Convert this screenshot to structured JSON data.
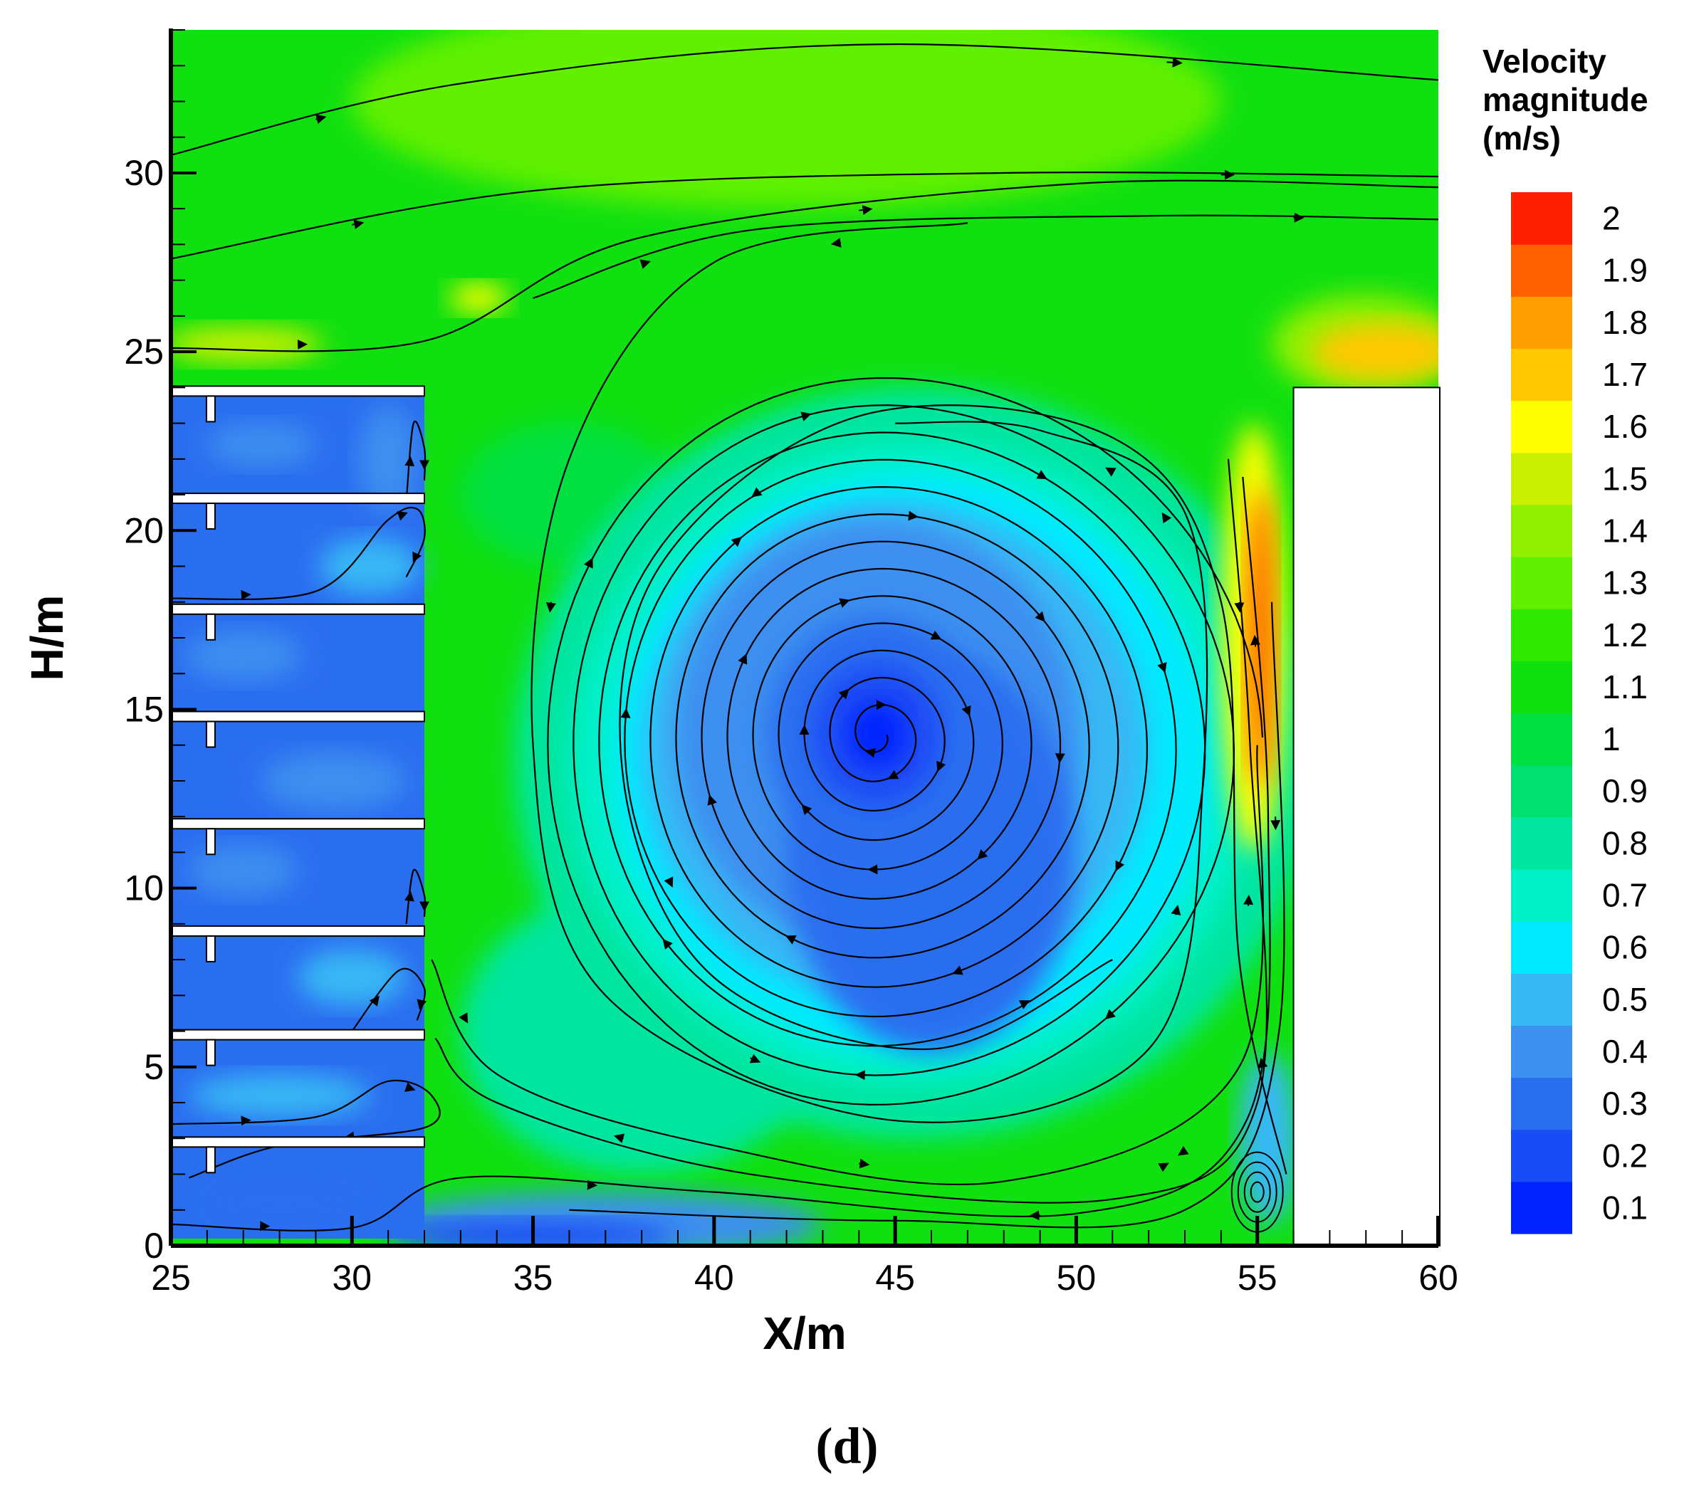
{
  "chart_data": {
    "type": "heatmap",
    "subtype": "velocity-contour-with-streamlines",
    "xlabel": "X/m",
    "ylabel": "H/m",
    "xlim": [
      25,
      60
    ],
    "ylim": [
      0,
      34
    ],
    "x_ticks": [
      25,
      30,
      35,
      40,
      45,
      50,
      55,
      60
    ],
    "y_ticks": [
      0,
      5,
      10,
      15,
      20,
      25,
      30
    ],
    "colorbar": {
      "title_lines": [
        "Velocity",
        "magnitude",
        "(m/s)"
      ],
      "levels": [
        0.1,
        0.2,
        0.3,
        0.4,
        0.5,
        0.6,
        0.7,
        0.8,
        0.9,
        1,
        1.1,
        1.2,
        1.3,
        1.4,
        1.5,
        1.6,
        1.7,
        1.8,
        1.9,
        2
      ],
      "colors": [
        "#0022ff",
        "#1a4cf5",
        "#2a6ef0",
        "#3d8ff0",
        "#38b8f5",
        "#00eaff",
        "#00f0c8",
        "#00e6a0",
        "#00e070",
        "#00e040",
        "#10e010",
        "#30e800",
        "#60f000",
        "#90f000",
        "#c8f000",
        "#ffff00",
        "#ffc800",
        "#ffa000",
        "#ff6000",
        "#ff2000"
      ],
      "range": [
        0.1,
        2.0
      ]
    },
    "features": {
      "main_vortex_center": [
        44.5,
        14.3
      ],
      "small_vortex_center": [
        55.0,
        1.5
      ],
      "building_right": {
        "x_start": 56,
        "height": 24
      },
      "floor_slabs_y": [
        23.9,
        20.9,
        17.8,
        14.8,
        11.8,
        8.8,
        5.9,
        2.9
      ],
      "facade_x": 32
    }
  },
  "panel_label": "(d)"
}
